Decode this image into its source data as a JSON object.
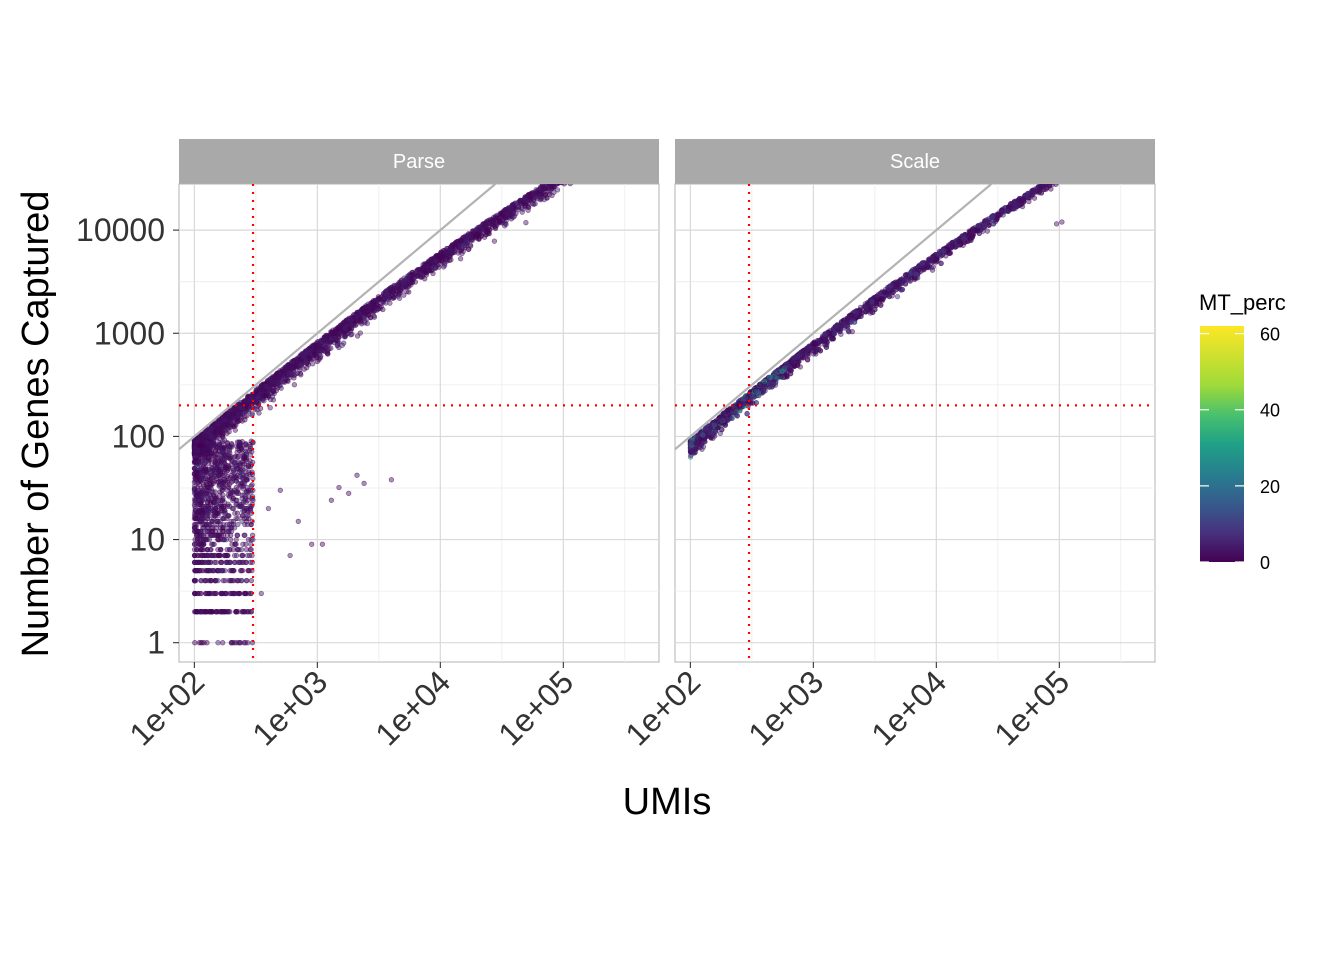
{
  "chart_data": {
    "type": "scatter",
    "xlabel": "UMIs",
    "ylabel": "Number of Genes Captured",
    "x_scale": "log10",
    "y_scale": "log10",
    "xlim": [
      75,
      600000
    ],
    "ylim": [
      0.65,
      28000
    ],
    "x_ticks": [
      100,
      1000,
      10000,
      100000
    ],
    "x_tick_labels": [
      "1e+02",
      "1e+03",
      "1e+04",
      "1e+05"
    ],
    "y_ticks": [
      1,
      10,
      100,
      1000,
      10000
    ],
    "y_tick_labels": [
      "1",
      "10",
      "100",
      "1000",
      "10000"
    ],
    "grid": true,
    "reference_line": {
      "type": "identity",
      "slope": 1,
      "color": "#b3b3b3"
    },
    "thresholds": {
      "umi": 300,
      "genes": 200,
      "color": "#ff0000",
      "style": "dotted"
    },
    "color_scale": {
      "name": "MT_perc",
      "palette": "viridis",
      "range": [
        0,
        62
      ],
      "breaks": [
        0,
        20,
        40,
        60
      ],
      "break_labels": [
        "0",
        "20",
        "40",
        "60"
      ]
    },
    "facets": [
      {
        "label": "Parse",
        "main_band": {
          "x_min": 100,
          "x_max": 170000,
          "offset_ratio": 0.085,
          "curve": 0.045,
          "spread": 0.09,
          "mt_mean": 3
        },
        "low_tail": {
          "x_min": 100,
          "x_max": 300,
          "y_min": 1,
          "y_max": 90,
          "mt_mean": 3
        },
        "outliers": [
          [
            4000,
            38
          ],
          [
            2100,
            42
          ],
          [
            2400,
            35
          ],
          [
            1500,
            32
          ],
          [
            1800,
            28
          ],
          [
            900,
            9
          ],
          [
            1100,
            9
          ],
          [
            400,
            20
          ],
          [
            500,
            30
          ],
          [
            700,
            15
          ],
          [
            350,
            3
          ],
          [
            600,
            7
          ],
          [
            1300,
            24
          ],
          [
            260,
            1
          ],
          [
            220,
            1
          ]
        ]
      },
      {
        "label": "Scale",
        "main_band": {
          "x_min": 100,
          "x_max": 110000,
          "offset_ratio": 0.1,
          "curve": 0.045,
          "spread": 0.06,
          "mt_mean": 5,
          "mt_high_below_umi": 600
        },
        "low_tail": null,
        "outliers": [
          [
            105000,
            12000
          ],
          [
            95000,
            11500
          ]
        ]
      }
    ]
  }
}
